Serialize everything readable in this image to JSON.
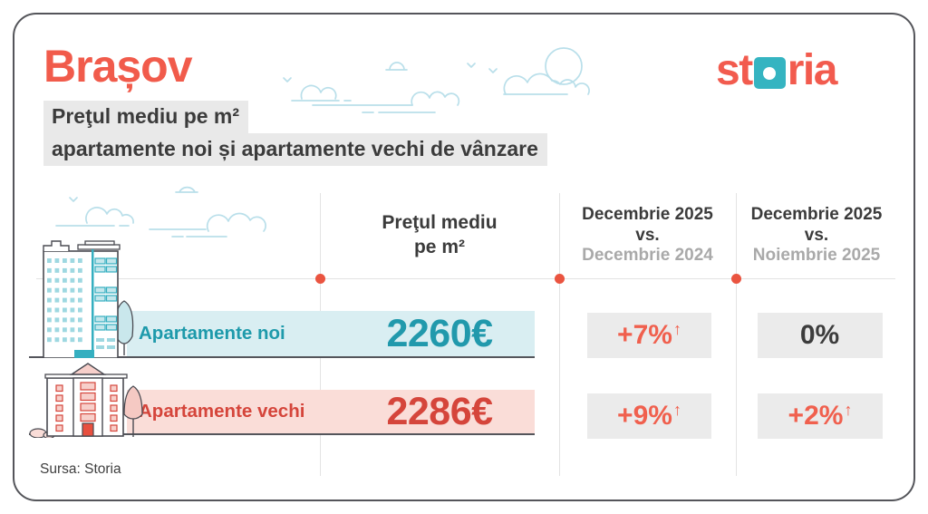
{
  "page": {
    "title": "Brașov",
    "subtitle_line1": "Preţul mediu pe m²",
    "subtitle_line2": "apartamente noi și apartamente vechi de vânzare",
    "source": "Sursa: Storia"
  },
  "logo": {
    "part1": "st",
    "part2": "ria"
  },
  "table": {
    "price_header": {
      "line1": "Preţul mediu",
      "line2": "pe m²"
    },
    "yoy_header": {
      "line1": "Decembrie 2025",
      "line2": "vs.",
      "line3": "Decembrie 2024"
    },
    "mom_header": {
      "line1": "Decembrie 2025",
      "line2": "vs.",
      "line3": "Noiembrie 2025"
    },
    "rows": [
      {
        "label": "Apartamente noi",
        "price": "2260€",
        "yoy": "+7%",
        "yoy_arrow": "↑",
        "mom": "0%",
        "mom_arrow": ""
      },
      {
        "label": "Apartamente vechi",
        "price": "2286€",
        "yoy": "+9%",
        "yoy_arrow": "↑",
        "mom": "+2%",
        "mom_arrow": "↑"
      }
    ]
  },
  "chart_data": {
    "type": "table",
    "title": "Brașov — Preţul mediu pe m² apartamente noi și apartamente vechi de vânzare",
    "columns": [
      "Preţul mediu pe m²",
      "Decembrie 2025 vs. Decembrie 2024",
      "Decembrie 2025 vs. Noiembrie 2025"
    ],
    "rows": [
      {
        "category": "Apartamente noi",
        "price_eur_per_m2": 2260,
        "yoy_change": "+7%",
        "mom_change": "0%"
      },
      {
        "category": "Apartamente vechi",
        "price_eur_per_m2": 2286,
        "yoy_change": "+9%",
        "mom_change": "+2%"
      }
    ],
    "source": "Sursa: Storia"
  },
  "colors": {
    "coral": "#F15B4B",
    "teal_text": "#2199AC",
    "teal_band": "#D9EEF2",
    "red_text": "#D5453B",
    "pink_band": "#FADDD8",
    "gray_box": "#EBEBEB",
    "dark_text": "#3B3B3B",
    "muted_text": "#A9A9A9",
    "cloud_blue": "#B9DFEA",
    "logo_teal": "#35B4C1"
  }
}
